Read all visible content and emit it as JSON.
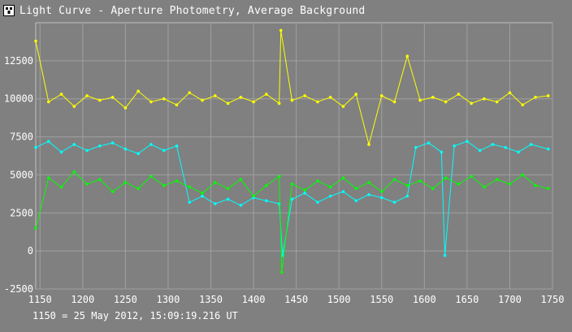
{
  "window": {
    "title": "Light Curve - Aperture Photometry, Average Background"
  },
  "footer": {
    "time_reference": "1150 = 25 May 2012, 15:09:19.216 UT"
  },
  "colors": {
    "background": "#808080",
    "plot_border": "#c0c0c0",
    "grid": "#a0a0a0",
    "yellow_series": "#ffff00",
    "cyan_series": "#00ffff",
    "green_series": "#00ff00",
    "text": "#ffffff"
  },
  "chart_data": {
    "type": "line",
    "title": "",
    "xlabel": "",
    "ylabel": "",
    "xlim": [
      1145,
      1750
    ],
    "ylim": [
      -2500,
      15000
    ],
    "xticks": [
      1150,
      1200,
      1250,
      1300,
      1350,
      1400,
      1450,
      1500,
      1550,
      1600,
      1650,
      1700,
      1750
    ],
    "yticks": [
      -2500,
      0,
      2500,
      5000,
      7500,
      10000,
      12500
    ],
    "grid": true,
    "markers": true,
    "series": [
      {
        "color": "#ffff00",
        "x": [
          1145,
          1160,
          1175,
          1190,
          1205,
          1220,
          1235,
          1250,
          1265,
          1280,
          1295,
          1310,
          1325,
          1340,
          1355,
          1370,
          1385,
          1400,
          1415,
          1430,
          1432,
          1445,
          1460,
          1475,
          1490,
          1505,
          1520,
          1535,
          1550,
          1565,
          1580,
          1595,
          1610,
          1625,
          1640,
          1655,
          1670,
          1685,
          1700,
          1715,
          1730,
          1745
        ],
        "y": [
          13800,
          9800,
          10300,
          9500,
          10200,
          9900,
          10100,
          9400,
          10500,
          9800,
          10000,
          9600,
          10400,
          9900,
          10200,
          9700,
          10100,
          9800,
          10300,
          9700,
          14500,
          9900,
          10200,
          9800,
          10100,
          9500,
          10300,
          7000,
          10200,
          9800,
          12800,
          9900,
          10100,
          9800,
          10300,
          9700,
          10000,
          9800,
          10400,
          9600,
          10100,
          10200
        ]
      },
      {
        "color": "#00ffff",
        "x": [
          1145,
          1160,
          1175,
          1190,
          1205,
          1220,
          1235,
          1250,
          1265,
          1280,
          1295,
          1310,
          1325,
          1340,
          1355,
          1370,
          1385,
          1400,
          1415,
          1430,
          1434,
          1445,
          1460,
          1475,
          1490,
          1505,
          1520,
          1535,
          1550,
          1565,
          1580,
          1590,
          1605,
          1620,
          1624,
          1635,
          1650,
          1665,
          1680,
          1695,
          1710,
          1725,
          1745
        ],
        "y": [
          6800,
          7200,
          6500,
          7000,
          6600,
          6900,
          7100,
          6700,
          6400,
          7000,
          6600,
          6900,
          3200,
          3600,
          3100,
          3400,
          3000,
          3500,
          3300,
          3100,
          -300,
          3400,
          3800,
          3200,
          3600,
          3900,
          3300,
          3700,
          3500,
          3200,
          3600,
          6800,
          7100,
          6500,
          -300,
          6900,
          7200,
          6600,
          7000,
          6800,
          6500,
          7000,
          6700
        ]
      },
      {
        "color": "#00ff00",
        "x": [
          1145,
          1160,
          1175,
          1190,
          1205,
          1220,
          1235,
          1250,
          1265,
          1280,
          1295,
          1310,
          1325,
          1340,
          1355,
          1370,
          1385,
          1400,
          1415,
          1430,
          1433,
          1445,
          1460,
          1475,
          1490,
          1505,
          1520,
          1535,
          1550,
          1565,
          1580,
          1595,
          1610,
          1625,
          1640,
          1655,
          1670,
          1685,
          1700,
          1715,
          1730,
          1745
        ],
        "y": [
          1500,
          4800,
          4200,
          5200,
          4400,
          4700,
          3900,
          4500,
          4100,
          4900,
          4300,
          4600,
          4200,
          3800,
          4500,
          4100,
          4700,
          3600,
          4300,
          4900,
          -1400,
          4400,
          4000,
          4600,
          4200,
          4800,
          4100,
          4500,
          3900,
          4700,
          4300,
          4600,
          4100,
          4800,
          4400,
          4900,
          4200,
          4700,
          4400,
          5000,
          4300,
          4100
        ]
      }
    ]
  }
}
